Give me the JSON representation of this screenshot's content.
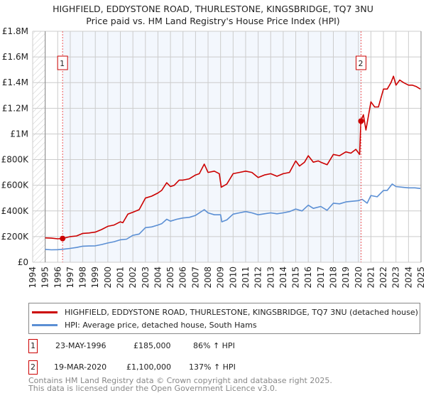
{
  "title": {
    "line1": "HIGHFIELD, EDDYSTONE ROAD, THURLESTONE, KINGSBRIDGE, TQ7 3NU",
    "line2": "Price paid vs. HM Land Registry's House Price Index (HPI)"
  },
  "chart_data": {
    "type": "line",
    "xlim": [
      1994,
      2025
    ],
    "ylim": [
      0,
      1800000
    ],
    "x_ticks": [
      "1994",
      "1995",
      "1996",
      "1997",
      "1998",
      "1999",
      "2000",
      "2001",
      "2002",
      "2003",
      "2004",
      "2005",
      "2006",
      "2007",
      "2008",
      "2009",
      "2010",
      "2011",
      "2012",
      "2013",
      "2014",
      "2015",
      "2016",
      "2017",
      "2018",
      "2019",
      "2020",
      "2021",
      "2022",
      "2023",
      "2024",
      "2025"
    ],
    "y_ticks": [
      {
        "v": 0,
        "label": "£0"
      },
      {
        "v": 200000,
        "label": "£200K"
      },
      {
        "v": 400000,
        "label": "£400K"
      },
      {
        "v": 600000,
        "label": "£600K"
      },
      {
        "v": 800000,
        "label": "£800K"
      },
      {
        "v": 1000000,
        "label": "£1M"
      },
      {
        "v": 1200000,
        "label": "£1.2M"
      },
      {
        "v": 1400000,
        "label": "£1.4M"
      },
      {
        "v": 1600000,
        "label": "£1.6M"
      },
      {
        "v": 1800000,
        "label": "£1.8M"
      }
    ],
    "grid": true,
    "series": [
      {
        "name": "HIGHFIELD, EDDYSTONE ROAD, THURLESTONE, KINGSBRIDGE, TQ7 3NU (detached house)",
        "color": "#cc0000",
        "x": [
          1995,
          1995.5,
          1996,
          1996.4,
          1997,
          1997.5,
          1998,
          1998.5,
          1999,
          1999.5,
          2000,
          2000.5,
          2001,
          2001.2,
          2001.6,
          2002,
          2002.5,
          2003,
          2003.5,
          2004,
          2004.3,
          2004.7,
          2005,
          2005.3,
          2005.7,
          2006,
          2006.5,
          2007,
          2007.3,
          2007.7,
          2008,
          2008.5,
          2008.9,
          2009.05,
          2009.5,
          2010,
          2010.5,
          2011,
          2011.5,
          2012,
          2012.5,
          2013,
          2013.5,
          2014,
          2014.5,
          2015,
          2015.3,
          2015.7,
          2016,
          2016.4,
          2016.8,
          2017,
          2017.5,
          2018,
          2018.5,
          2019,
          2019.4,
          2019.8,
          2020.1,
          2020.2,
          2020.4,
          2020.6,
          2021,
          2021.3,
          2021.6,
          2022,
          2022.3,
          2022.6,
          2022.8,
          2023,
          2023.3,
          2023.6,
          2024,
          2024.3,
          2024.6,
          2024.95
        ],
        "y": [
          190000,
          188000,
          183000,
          185000,
          200000,
          205000,
          225000,
          228000,
          235000,
          255000,
          280000,
          290000,
          315000,
          308000,
          375000,
          390000,
          410000,
          500000,
          515000,
          540000,
          560000,
          620000,
          590000,
          600000,
          640000,
          640000,
          650000,
          680000,
          690000,
          765000,
          700000,
          710000,
          690000,
          585000,
          610000,
          690000,
          700000,
          710000,
          700000,
          660000,
          680000,
          690000,
          670000,
          690000,
          700000,
          790000,
          750000,
          780000,
          830000,
          780000,
          790000,
          780000,
          760000,
          840000,
          830000,
          860000,
          850000,
          880000,
          840000,
          1100000,
          1150000,
          1030000,
          1250000,
          1210000,
          1210000,
          1350000,
          1350000,
          1400000,
          1450000,
          1380000,
          1420000,
          1400000,
          1380000,
          1380000,
          1370000,
          1350000
        ]
      },
      {
        "name": "HPI: Average price, detached house, South Hams",
        "color": "#5b8fd4",
        "x": [
          1995,
          1995.5,
          1996,
          1996.5,
          1997,
          1997.5,
          1998,
          1998.5,
          1999,
          1999.5,
          2000,
          2000.5,
          2001,
          2001.5,
          2002,
          2002.5,
          2003,
          2003.5,
          2004,
          2004.3,
          2004.7,
          2005,
          2005.5,
          2006,
          2006.5,
          2007,
          2007.7,
          2008,
          2008.5,
          2009,
          2009.1,
          2009.5,
          2010,
          2010.5,
          2011,
          2011.5,
          2012,
          2012.5,
          2013,
          2013.5,
          2014,
          2014.5,
          2015,
          2015.5,
          2016,
          2016.4,
          2017,
          2017.5,
          2018,
          2018.5,
          2019,
          2019.5,
          2020,
          2020.3,
          2020.7,
          2021,
          2021.5,
          2022,
          2022.3,
          2022.7,
          2023,
          2023.5,
          2024,
          2024.5,
          2024.95
        ],
        "y": [
          100000,
          97000,
          98000,
          102000,
          108000,
          115000,
          125000,
          127000,
          128000,
          138000,
          150000,
          160000,
          175000,
          180000,
          210000,
          220000,
          270000,
          275000,
          290000,
          300000,
          335000,
          320000,
          335000,
          345000,
          350000,
          365000,
          410000,
          385000,
          370000,
          370000,
          315000,
          330000,
          375000,
          385000,
          395000,
          385000,
          370000,
          378000,
          385000,
          378000,
          385000,
          395000,
          415000,
          400000,
          445000,
          420000,
          435000,
          405000,
          460000,
          455000,
          470000,
          475000,
          480000,
          490000,
          460000,
          520000,
          510000,
          560000,
          560000,
          610000,
          590000,
          585000,
          580000,
          580000,
          575000
        ]
      }
    ],
    "shaded_range": [
      1996.39,
      2020.21
    ],
    "hatched_before": 1995,
    "annotations": [
      {
        "label": "1",
        "x": 1996.39,
        "y": 185000
      },
      {
        "label": "2",
        "x": 2020.21,
        "y": 1100000
      }
    ]
  },
  "transactions": [
    {
      "num": "1",
      "date": "23-MAY-1996",
      "price": "£185,000",
      "hpi": "86% ↑ HPI"
    },
    {
      "num": "2",
      "date": "19-MAR-2020",
      "price": "£1,100,000",
      "hpi": "137% ↑ HPI"
    }
  ],
  "footer": {
    "line1": "Contains HM Land Registry data © Crown copyright and database right 2025.",
    "line2": "This data is licensed under the Open Government Licence v3.0."
  }
}
